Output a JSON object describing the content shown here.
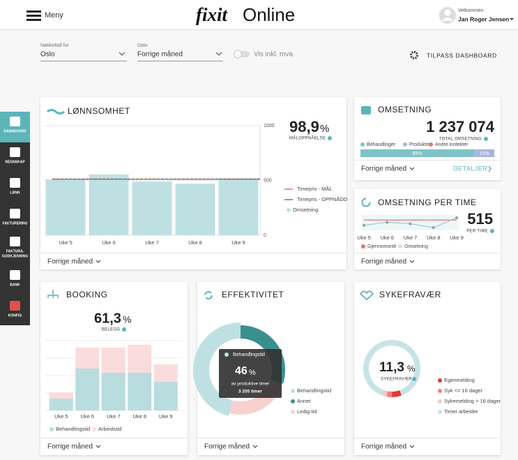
{
  "header": {
    "menu": "Meny",
    "logo_brand": "fixit",
    "logo_product": "Online",
    "welcome": "Velkommen",
    "user": "Jan Roger Jensen"
  },
  "filters": {
    "location_label": "Nøkkeltall for",
    "location": "Oslo",
    "date_label": "Dato",
    "date": "Forrige måned",
    "vat_toggle": "Vis inkl. mva",
    "customize": "TILPASS DASHBOARD"
  },
  "sidebar": [
    [
      "DASHBOARD"
    ],
    [
      "REGNSKAP"
    ],
    [
      "LØNN"
    ],
    [
      "FAKTURERING"
    ],
    [
      "FAKTURA-",
      "GODKJENNING"
    ],
    [
      "BANK"
    ],
    [
      "KONFIG"
    ]
  ],
  "cards": [
    {
      "title": "LØNNSOMHET",
      "kpi_value": "98,9",
      "kpi_unit": "%",
      "kpi_label": "MÅLOPPNÅELSE",
      "footer": "Forrige måned",
      "chart": {
        "type": "bar",
        "categories": [
          "Uke 5",
          "Uke 6",
          "Uke 7",
          "Uke 8",
          "Uke 9"
        ],
        "series": [
          {
            "name": "Omsetning",
            "color": "#bfe0e2",
            "values": [
              510,
              555,
              490,
              470,
              520
            ]
          }
        ],
        "lines": [
          {
            "name": "Timepris - MÅL",
            "color": "#e57373",
            "value": 515
          },
          {
            "name": "Timepris - OPPNÅDD",
            "color": "#3a8f8f",
            "value": 510
          }
        ],
        "ylim": [
          0,
          1000
        ],
        "yticks": [
          0,
          500,
          1000
        ],
        "grid": true
      }
    },
    {
      "title": "OMSETNING",
      "kpi_value": "1 237 074",
      "kpi_label": "TOTAL OMSETNING",
      "footer": "Forrige måned",
      "link": "DETALJER",
      "chart": {
        "type": "stacked-hbar",
        "xlim": [
          0,
          100
        ],
        "series": [
          {
            "name": "Behandlinger",
            "color": "#7fc3c6",
            "values": [
              85
            ],
            "value_labels": [
              "85%"
            ]
          },
          {
            "name": "Produkter",
            "color": "#a9b5de",
            "values": [
              15
            ],
            "value_labels": [
              "15%"
            ]
          },
          {
            "name": "Andre inntekter",
            "color": "#e57373",
            "values": [
              0
            ]
          }
        ]
      }
    },
    {
      "title": "OMSETNING PER TIME",
      "kpi_value": "515",
      "kpi_label": "PER TIME",
      "footer": "Forrige måned",
      "chart": {
        "type": "line",
        "categories": [
          "Uke 5",
          "Uke 6",
          "Uke 7",
          "Uke 8",
          "Uke 9"
        ],
        "series": [
          {
            "name": "Gjennomsnitt",
            "color": "#e57373",
            "values": [
              515,
              515,
              515,
              515,
              515
            ]
          },
          {
            "name": "Omsetning",
            "color": "#c7e4e5",
            "values": [
              508,
              512,
              510,
              505,
              518
            ]
          }
        ]
      }
    },
    {
      "title": "BOOKING",
      "kpi_value": "61,3",
      "kpi_unit": "%",
      "kpi_label": "BELEGG",
      "footer": "Forrige måned",
      "chart": {
        "type": "stacked-bar",
        "categories": [
          "Uke 5",
          "Uke 6",
          "Uke 7",
          "Uke 8",
          "Uke 9"
        ],
        "series": [
          {
            "name": "Behandlingstid",
            "color": "#b9dcde",
            "values": [
              17,
              60,
              54,
              54,
              41
            ]
          },
          {
            "name": "Arbeidstid",
            "color": "#fbdcdc",
            "values": [
              9,
              30,
              36,
              40,
              25
            ]
          }
        ]
      }
    },
    {
      "title": "EFFEKTIVITET",
      "footer": "Forrige måned",
      "tooltip": {
        "title": "Behandlingstid",
        "value": "46",
        "unit": "%",
        "line1": "av produktive timer",
        "line2": "3 205 timer"
      },
      "chart": {
        "type": "donut",
        "series": [
          {
            "name": "Behandlingstid",
            "color": "#bfe0e2",
            "value": 46
          },
          {
            "name": "Annet",
            "color": "#3a8f8f",
            "value": 30
          },
          {
            "name": "Ledig tid",
            "color": "#f8d0d0",
            "value": 24
          }
        ]
      }
    },
    {
      "title": "SYKEFRAVÆR",
      "kpi_value": "11,3",
      "kpi_unit": "%",
      "kpi_label": "SYKEFRAVÆR",
      "footer": "Forrige måned",
      "chart": {
        "type": "ring",
        "series": [
          {
            "name": "Egenmelding",
            "color": "#e53935",
            "value": 5.5
          },
          {
            "name": "Syk <= 16 dager",
            "color": "#f08080",
            "value": 3
          },
          {
            "name": "Sykemelding > 16 dager",
            "color": "#f8c8c8",
            "value": 2.8
          },
          {
            "name": "Timer arbeidet",
            "color": "#c7e4e5",
            "value": 88.7
          }
        ]
      }
    }
  ]
}
